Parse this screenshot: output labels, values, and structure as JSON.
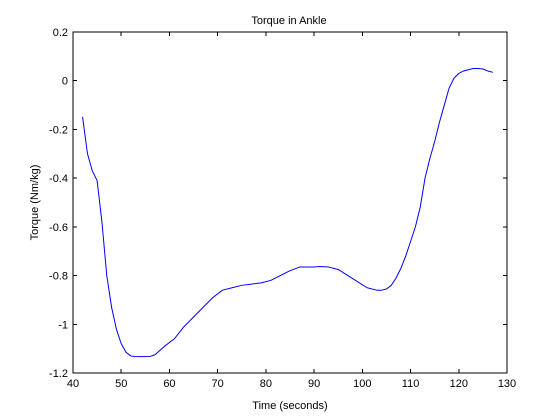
{
  "chart_data": {
    "type": "line",
    "title": "Torque in Ankle",
    "xlabel": "Time (seconds)",
    "ylabel": "Torque (Nm/kg)",
    "xlim": [
      40,
      130
    ],
    "ylim": [
      -1.2,
      0.2
    ],
    "xticks": [
      "40",
      "50",
      "60",
      "70",
      "80",
      "90",
      "100",
      "110",
      "120",
      "130"
    ],
    "yticks": [
      "0.2",
      "0",
      "-0.2",
      "-0.4",
      "-0.6",
      "-0.8",
      "-1",
      "-1.2"
    ],
    "grid": false,
    "legend": "none",
    "series": [
      {
        "color": "#0000ff",
        "x": [
          42,
          43,
          44,
          45,
          46,
          47,
          48,
          49,
          50,
          51,
          52,
          53,
          54,
          56,
          57,
          59,
          61,
          63,
          65,
          67,
          69,
          71,
          73,
          75,
          77,
          79,
          81,
          83,
          85,
          87,
          89,
          90,
          91,
          93,
          95,
          97,
          99,
          101,
          103,
          104,
          105,
          106,
          107,
          108,
          109,
          110,
          111,
          112,
          113,
          114,
          115,
          116,
          117,
          118,
          119,
          120,
          121,
          122,
          123,
          124,
          125,
          126,
          127
        ],
        "y": [
          -0.15,
          -0.3,
          -0.37,
          -0.41,
          -0.58,
          -0.8,
          -0.93,
          -1.02,
          -1.08,
          -1.115,
          -1.13,
          -1.132,
          -1.133,
          -1.132,
          -1.125,
          -1.09,
          -1.06,
          -1.01,
          -0.97,
          -0.93,
          -0.89,
          -0.86,
          -0.85,
          -0.84,
          -0.835,
          -0.83,
          -0.82,
          -0.8,
          -0.78,
          -0.765,
          -0.765,
          -0.765,
          -0.763,
          -0.765,
          -0.775,
          -0.8,
          -0.825,
          -0.85,
          -0.86,
          -0.86,
          -0.855,
          -0.84,
          -0.81,
          -0.77,
          -0.72,
          -0.66,
          -0.6,
          -0.52,
          -0.4,
          -0.32,
          -0.25,
          -0.17,
          -0.1,
          -0.03,
          0.01,
          0.03,
          0.04,
          0.045,
          0.05,
          0.05,
          0.048,
          0.04,
          0.035
        ]
      }
    ]
  }
}
